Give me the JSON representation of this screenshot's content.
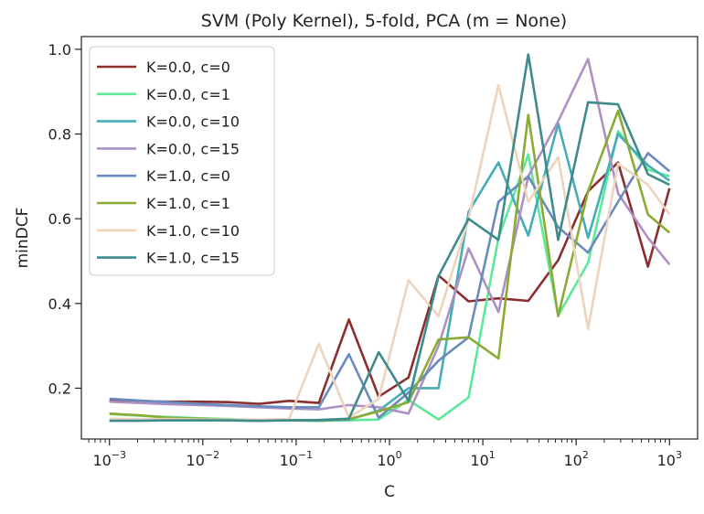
{
  "chart_data": {
    "type": "line",
    "title": "SVM (Poly Kernel), 5-fold, PCA (m = None)",
    "xlabel": "C",
    "ylabel": "minDCF",
    "x_scale": "log",
    "xlim": [
      0.0005,
      2000
    ],
    "ylim": [
      0.08,
      1.03
    ],
    "x_ticks": [
      {
        "value": 0.001,
        "base": "10",
        "exp": "−3"
      },
      {
        "value": 0.01,
        "base": "10",
        "exp": "−2"
      },
      {
        "value": 0.1,
        "base": "10",
        "exp": "−1"
      },
      {
        "value": 1,
        "base": "10",
        "exp": "0"
      },
      {
        "value": 10,
        "base": "10",
        "exp": "1"
      },
      {
        "value": 100,
        "base": "10",
        "exp": "2"
      },
      {
        "value": 1000,
        "base": "10",
        "exp": "3"
      }
    ],
    "y_ticks": [
      {
        "value": 0.2,
        "label": "0.2"
      },
      {
        "value": 0.4,
        "label": "0.4"
      },
      {
        "value": 0.6,
        "label": "0.6"
      },
      {
        "value": 0.8,
        "label": "0.8"
      },
      {
        "value": 1.0,
        "label": "1.0"
      }
    ],
    "legend_position": "top-left",
    "grid": false,
    "x": [
      0.001,
      0.00209,
      0.00438,
      0.00916,
      0.0192,
      0.0401,
      0.0839,
      0.175,
      0.367,
      0.767,
      1.6,
      3.36,
      7.03,
      14.7,
      30.7,
      64.2,
      134,
      281,
      588,
      1000
    ],
    "series": [
      {
        "name": "K=0.0, c=0",
        "color": "#8b2e2e",
        "values": [
          0.17,
          0.169,
          0.168,
          0.168,
          0.167,
          0.163,
          0.17,
          0.165,
          0.362,
          0.18,
          0.225,
          0.466,
          0.405,
          0.412,
          0.406,
          0.502,
          0.665,
          0.733,
          0.487,
          0.672
        ]
      },
      {
        "name": "K=0.0, c=1",
        "color": "#5ee89b",
        "values": [
          0.139,
          0.135,
          0.132,
          0.129,
          0.127,
          0.125,
          0.124,
          0.123,
          0.124,
          0.126,
          0.172,
          0.126,
          0.178,
          0.555,
          0.752,
          0.371,
          0.496,
          0.807,
          0.716,
          0.7
        ]
      },
      {
        "name": "K=0.0, c=10",
        "color": "#45adb8",
        "values": [
          0.124,
          0.124,
          0.124,
          0.124,
          0.124,
          0.123,
          0.124,
          0.123,
          0.126,
          0.147,
          0.2,
          0.2,
          0.616,
          0.733,
          0.56,
          0.825,
          0.555,
          0.8,
          0.726,
          0.69
        ]
      },
      {
        "name": "K=0.0, c=15",
        "color": "#ad90c4",
        "values": [
          0.168,
          0.165,
          0.162,
          0.16,
          0.158,
          0.155,
          0.152,
          0.15,
          0.16,
          0.155,
          0.14,
          0.3,
          0.53,
          0.38,
          0.7,
          0.83,
          0.977,
          0.66,
          0.555,
          0.492
        ]
      },
      {
        "name": "K=1.0, c=0",
        "color": "#6a8bbd",
        "values": [
          0.175,
          0.171,
          0.167,
          0.163,
          0.16,
          0.157,
          0.155,
          0.155,
          0.28,
          0.13,
          0.19,
          0.265,
          0.32,
          0.64,
          0.7,
          0.58,
          0.52,
          0.64,
          0.755,
          0.712
        ]
      },
      {
        "name": "K=1.0, c=1",
        "color": "#8aab35",
        "values": [
          0.14,
          0.136,
          0.13,
          0.128,
          0.126,
          0.125,
          0.124,
          0.124,
          0.127,
          0.145,
          0.167,
          0.315,
          0.32,
          0.27,
          0.845,
          0.37,
          0.665,
          0.855,
          0.61,
          0.567
        ]
      },
      {
        "name": "K=1.0, c=10",
        "color": "#ecd4bd",
        "values": [
          0.128,
          0.127,
          0.127,
          0.126,
          0.126,
          0.126,
          0.127,
          0.305,
          0.13,
          0.175,
          0.455,
          0.37,
          0.6,
          0.915,
          0.64,
          0.745,
          0.34,
          0.73,
          0.68,
          0.61
        ]
      },
      {
        "name": "K=1.0, c=15",
        "color": "#3f8a8a",
        "values": [
          0.123,
          0.123,
          0.124,
          0.124,
          0.124,
          0.123,
          0.124,
          0.125,
          0.128,
          0.285,
          0.17,
          0.465,
          0.6,
          0.55,
          0.988,
          0.55,
          0.875,
          0.87,
          0.705,
          0.68
        ]
      }
    ]
  }
}
